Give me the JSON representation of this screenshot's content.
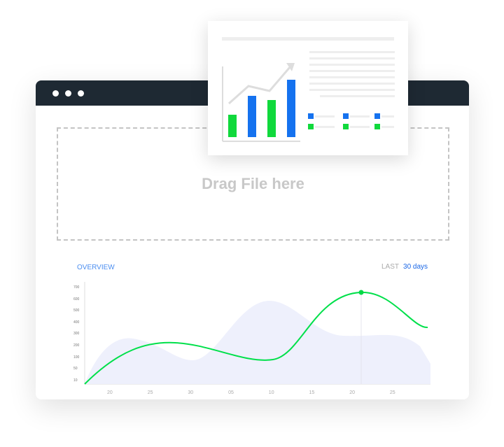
{
  "window": {
    "dots": 3
  },
  "dropzone": {
    "label": "Drag File here"
  },
  "chart": {
    "title": "OVERVIEW",
    "range_prefix": "LAST",
    "range_value": "30 days"
  },
  "colors": {
    "header": "#1e2933",
    "line": "#00e04a",
    "area": "#eef0fc",
    "accent": "#1966e6"
  },
  "chart_data": {
    "type": "line",
    "y_ticks": [
      "700",
      "600",
      "500",
      "400",
      "300",
      "200",
      "100",
      "50",
      "10"
    ],
    "x_ticks": [
      "20",
      "25",
      "30",
      "05",
      "10",
      "15",
      "20",
      "25"
    ],
    "highlight_x": "20"
  }
}
